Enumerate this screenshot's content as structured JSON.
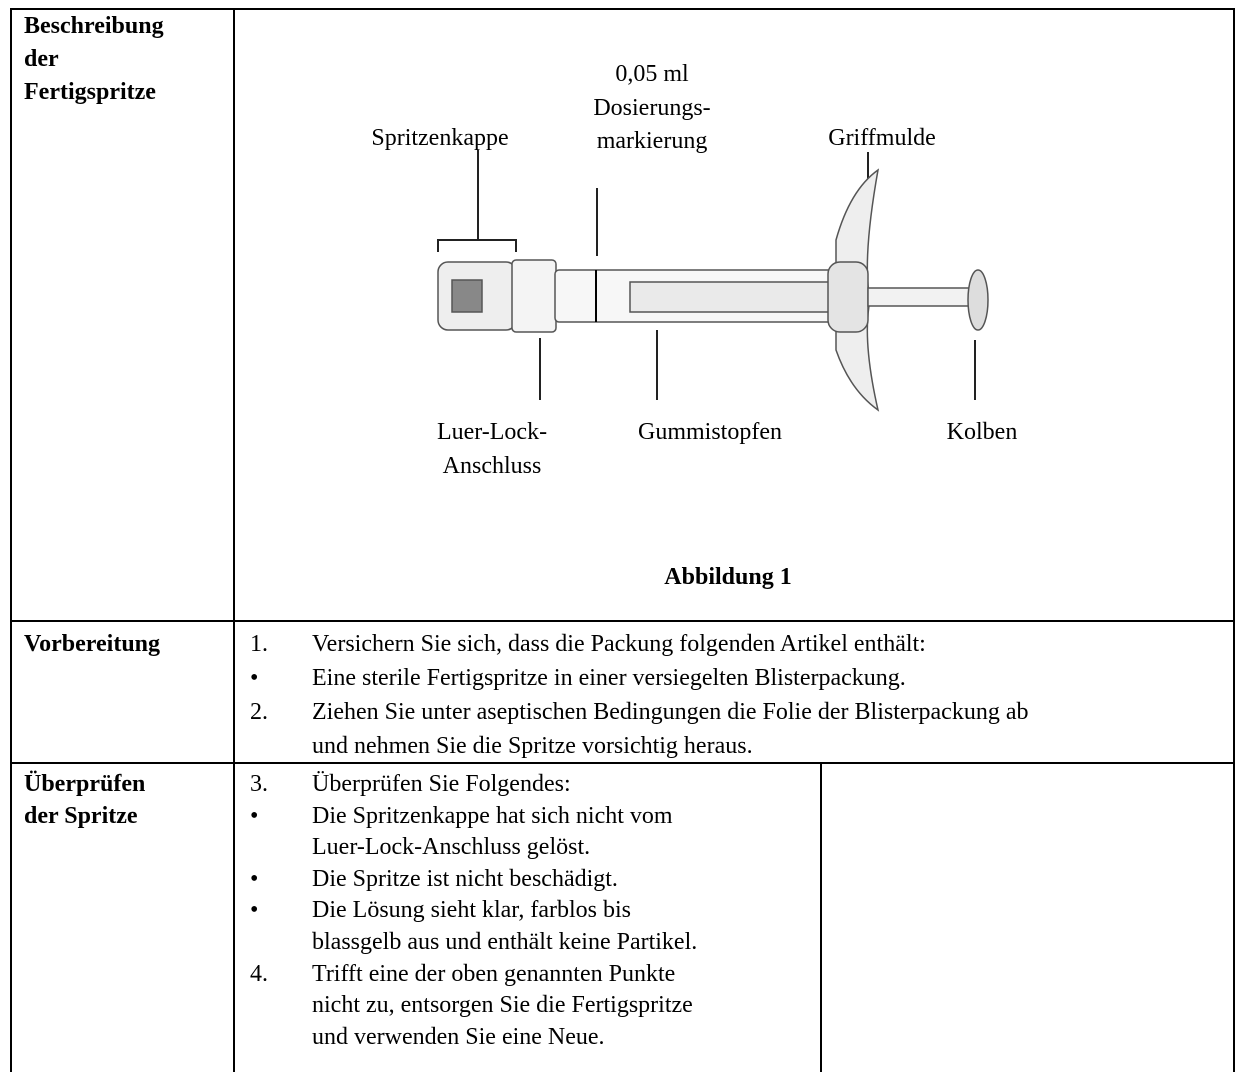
{
  "rows": [
    {
      "heading": [
        "Beschreibung",
        "der",
        "Fertigspritze"
      ],
      "figure": {
        "callouts": [
          {
            "lines": [
              "Spritzenkappe"
            ]
          },
          {
            "lines": [
              "0,05 ml",
              "Dosierungs-",
              "markierung"
            ]
          },
          {
            "lines": [
              "Griffmulde"
            ]
          },
          {
            "lines": [
              "Luer-Lock-",
              "Anschluss"
            ]
          },
          {
            "lines": [
              "Gummistopfen"
            ]
          },
          {
            "lines": [
              "Kolben"
            ]
          }
        ],
        "caption": "Abbildung 1"
      }
    },
    {
      "heading": [
        "Vorbereitung"
      ],
      "items": [
        {
          "marker": "1.",
          "lines": [
            "Versichern Sie sich, dass die Packung folgenden Artikel enthält:"
          ]
        },
        {
          "marker": "•",
          "lines": [
            "Eine sterile Fertigspritze in einer versiegelten Blisterpackung."
          ]
        },
        {
          "marker": "2.",
          "lines": [
            "Ziehen Sie unter aseptischen Bedingungen die Folie der Blisterpackung ab",
            "und nehmen Sie die Spritze vorsichtig heraus."
          ]
        }
      ]
    },
    {
      "heading": [
        "Überprüfen",
        "der Spritze"
      ],
      "items": [
        {
          "marker": "3.",
          "lines": [
            "Überprüfen Sie Folgendes:"
          ]
        },
        {
          "marker": "•",
          "lines": [
            "Die Spritzenkappe hat sich nicht vom",
            "Luer-Lock-Anschluss gelöst."
          ]
        },
        {
          "marker": "•",
          "lines": [
            "Die Spritze ist nicht beschädigt."
          ]
        },
        {
          "marker": "•",
          "lines": [
            "Die Lösung sieht klar, farblos bis",
            "blassgelb aus und enthält keine Partikel."
          ]
        },
        {
          "marker": "4.",
          "lines": [
            "Trifft eine der oben genannten Punkte",
            "nicht zu, entsorgen Sie die Fertigspritze",
            "und verwenden Sie eine Neue."
          ]
        }
      ]
    }
  ]
}
